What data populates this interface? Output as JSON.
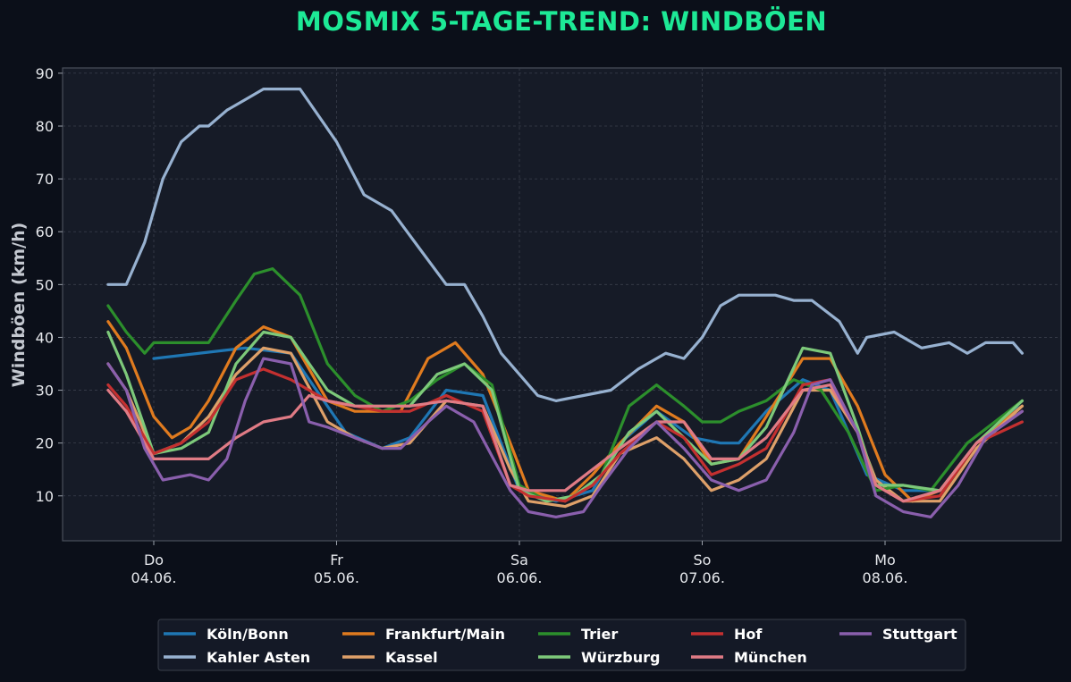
{
  "chart_data": {
    "type": "line",
    "title": "MOSMIX 5-TAGE-TREND: WINDBÖEN",
    "ylabel": "Windböen (km/h)",
    "xlabel": "",
    "xlim": [
      -0.25,
      5.0
    ],
    "ylim": [
      1.5,
      91
    ],
    "yticks": [
      10,
      20,
      30,
      40,
      50,
      60,
      70,
      80,
      90
    ],
    "xticks": [
      {
        "x": 0,
        "label": "Do\n04.06."
      },
      {
        "x": 1,
        "label": "Fr\n05.06."
      },
      {
        "x": 2,
        "label": "Sa\n06.06."
      },
      {
        "x": 3,
        "label": "So\n07.06."
      },
      {
        "x": 4,
        "label": "Mo\n08.06."
      }
    ],
    "grid": true,
    "legend_position": "bottom",
    "series": [
      {
        "name": "Köln/Bonn",
        "color": "#1f77b4",
        "points": [
          [
            0,
            36
          ],
          [
            0.5,
            38
          ],
          [
            0.75,
            37
          ],
          [
            1.05,
            22
          ],
          [
            1.25,
            19
          ],
          [
            1.4,
            21
          ],
          [
            1.6,
            30
          ],
          [
            1.8,
            29
          ],
          [
            1.9,
            20
          ],
          [
            2.0,
            11
          ],
          [
            2.2,
            9
          ],
          [
            2.4,
            11
          ],
          [
            2.55,
            20
          ],
          [
            2.75,
            26
          ],
          [
            2.95,
            21
          ],
          [
            3.1,
            20
          ],
          [
            3.2,
            20
          ],
          [
            3.35,
            26
          ],
          [
            3.55,
            32
          ],
          [
            3.7,
            30
          ],
          [
            3.9,
            14
          ],
          [
            4.1,
            11
          ],
          [
            4.3,
            11
          ],
          [
            4.5,
            20
          ],
          [
            4.7,
            26
          ],
          [
            4.75,
            27
          ]
        ]
      },
      {
        "name": "Kahler Asten",
        "color": "#97b1d0",
        "points": [
          [
            -0.25,
            50
          ],
          [
            -0.15,
            50
          ],
          [
            -0.05,
            58
          ],
          [
            0.05,
            70
          ],
          [
            0.15,
            77
          ],
          [
            0.25,
            80
          ],
          [
            0.3,
            80
          ],
          [
            0.4,
            83
          ],
          [
            0.5,
            85
          ],
          [
            0.6,
            87
          ],
          [
            0.8,
            87
          ],
          [
            1.0,
            77
          ],
          [
            1.15,
            67
          ],
          [
            1.3,
            64
          ],
          [
            1.45,
            57
          ],
          [
            1.6,
            50
          ],
          [
            1.7,
            50
          ],
          [
            1.8,
            44
          ],
          [
            1.9,
            37
          ],
          [
            2.0,
            33
          ],
          [
            2.1,
            29
          ],
          [
            2.2,
            28
          ],
          [
            2.35,
            29
          ],
          [
            2.5,
            30
          ],
          [
            2.65,
            34
          ],
          [
            2.8,
            37
          ],
          [
            2.9,
            36
          ],
          [
            3.0,
            40
          ],
          [
            3.1,
            46
          ],
          [
            3.2,
            48
          ],
          [
            3.4,
            48
          ],
          [
            3.5,
            47
          ],
          [
            3.6,
            47
          ],
          [
            3.75,
            43
          ],
          [
            3.85,
            37
          ],
          [
            3.9,
            40
          ],
          [
            4.05,
            41
          ],
          [
            4.2,
            38
          ],
          [
            4.35,
            39
          ],
          [
            4.45,
            37
          ],
          [
            4.55,
            39
          ],
          [
            4.7,
            39
          ],
          [
            4.75,
            37
          ]
        ]
      },
      {
        "name": "Frankfurt/Main",
        "color": "#e07b1f",
        "points": [
          [
            -0.25,
            43
          ],
          [
            -0.15,
            38
          ],
          [
            0.0,
            25
          ],
          [
            0.1,
            21
          ],
          [
            0.2,
            23
          ],
          [
            0.3,
            28
          ],
          [
            0.45,
            38
          ],
          [
            0.6,
            42
          ],
          [
            0.75,
            40
          ],
          [
            0.95,
            28
          ],
          [
            1.1,
            26
          ],
          [
            1.2,
            26
          ],
          [
            1.35,
            26
          ],
          [
            1.5,
            36
          ],
          [
            1.65,
            39
          ],
          [
            1.8,
            33
          ],
          [
            1.95,
            20
          ],
          [
            2.05,
            11
          ],
          [
            2.25,
            9
          ],
          [
            2.4,
            14
          ],
          [
            2.55,
            20
          ],
          [
            2.75,
            27
          ],
          [
            2.9,
            24
          ],
          [
            3.05,
            16
          ],
          [
            3.2,
            17
          ],
          [
            3.35,
            25
          ],
          [
            3.55,
            36
          ],
          [
            3.7,
            36
          ],
          [
            3.85,
            27
          ],
          [
            4.0,
            14
          ],
          [
            4.15,
            9
          ],
          [
            4.3,
            11
          ],
          [
            4.5,
            20
          ],
          [
            4.75,
            27
          ]
        ]
      },
      {
        "name": "Kassel",
        "color": "#dea069",
        "points": [
          [
            -0.25,
            35
          ],
          [
            -0.15,
            30
          ],
          [
            0.0,
            18
          ],
          [
            0.15,
            20
          ],
          [
            0.3,
            25
          ],
          [
            0.45,
            33
          ],
          [
            0.6,
            38
          ],
          [
            0.75,
            37
          ],
          [
            0.95,
            24
          ],
          [
            1.1,
            21
          ],
          [
            1.25,
            19
          ],
          [
            1.4,
            20
          ],
          [
            1.6,
            28
          ],
          [
            1.8,
            27
          ],
          [
            1.95,
            15
          ],
          [
            2.05,
            9
          ],
          [
            2.25,
            8
          ],
          [
            2.4,
            10
          ],
          [
            2.55,
            18
          ],
          [
            2.75,
            21
          ],
          [
            2.9,
            17
          ],
          [
            3.05,
            11
          ],
          [
            3.2,
            13
          ],
          [
            3.35,
            17
          ],
          [
            3.55,
            30
          ],
          [
            3.7,
            30
          ],
          [
            3.85,
            22
          ],
          [
            3.95,
            13
          ],
          [
            4.1,
            9
          ],
          [
            4.3,
            9
          ],
          [
            4.5,
            19
          ],
          [
            4.75,
            27
          ]
        ]
      },
      {
        "name": "Trier",
        "color": "#2c8f2c",
        "points": [
          [
            -0.25,
            46
          ],
          [
            -0.15,
            41
          ],
          [
            -0.05,
            37
          ],
          [
            0.0,
            39
          ],
          [
            0.15,
            39
          ],
          [
            0.3,
            39
          ],
          [
            0.45,
            47
          ],
          [
            0.55,
            52
          ],
          [
            0.65,
            53
          ],
          [
            0.8,
            48
          ],
          [
            0.95,
            35
          ],
          [
            1.1,
            29
          ],
          [
            1.25,
            26
          ],
          [
            1.4,
            28
          ],
          [
            1.55,
            32
          ],
          [
            1.7,
            35
          ],
          [
            1.85,
            31
          ],
          [
            2.0,
            12
          ],
          [
            2.15,
            9
          ],
          [
            2.3,
            10
          ],
          [
            2.45,
            14
          ],
          [
            2.6,
            27
          ],
          [
            2.75,
            31
          ],
          [
            2.9,
            27
          ],
          [
            3.0,
            24
          ],
          [
            3.1,
            24
          ],
          [
            3.2,
            26
          ],
          [
            3.35,
            28
          ],
          [
            3.5,
            32
          ],
          [
            3.65,
            30
          ],
          [
            3.8,
            22
          ],
          [
            3.95,
            11
          ],
          [
            4.1,
            12
          ],
          [
            4.25,
            11
          ],
          [
            4.45,
            20
          ],
          [
            4.75,
            28
          ]
        ]
      },
      {
        "name": "Würzburg",
        "color": "#7dc97a",
        "points": [
          [
            -0.25,
            41
          ],
          [
            -0.15,
            33
          ],
          [
            0.0,
            18
          ],
          [
            0.15,
            19
          ],
          [
            0.3,
            22
          ],
          [
            0.45,
            35
          ],
          [
            0.6,
            41
          ],
          [
            0.75,
            40
          ],
          [
            0.95,
            30
          ],
          [
            1.1,
            27
          ],
          [
            1.25,
            27
          ],
          [
            1.4,
            27
          ],
          [
            1.55,
            33
          ],
          [
            1.7,
            35
          ],
          [
            1.85,
            30
          ],
          [
            2.0,
            11
          ],
          [
            2.15,
            9
          ],
          [
            2.3,
            10
          ],
          [
            2.45,
            14
          ],
          [
            2.6,
            22
          ],
          [
            2.75,
            26
          ],
          [
            2.9,
            21
          ],
          [
            3.05,
            16
          ],
          [
            3.2,
            17
          ],
          [
            3.35,
            23
          ],
          [
            3.55,
            38
          ],
          [
            3.7,
            37
          ],
          [
            3.85,
            23
          ],
          [
            3.95,
            12
          ],
          [
            4.1,
            12
          ],
          [
            4.3,
            11
          ],
          [
            4.5,
            20
          ],
          [
            4.75,
            28
          ]
        ]
      },
      {
        "name": "Hof",
        "color": "#c43030",
        "points": [
          [
            -0.25,
            31
          ],
          [
            -0.15,
            27
          ],
          [
            0.0,
            18
          ],
          [
            0.15,
            20
          ],
          [
            0.3,
            24
          ],
          [
            0.45,
            32
          ],
          [
            0.6,
            34
          ],
          [
            0.75,
            32
          ],
          [
            0.95,
            28
          ],
          [
            1.1,
            27
          ],
          [
            1.25,
            26
          ],
          [
            1.4,
            26
          ],
          [
            1.6,
            29
          ],
          [
            1.8,
            26
          ],
          [
            1.95,
            12
          ],
          [
            2.05,
            10
          ],
          [
            2.25,
            9
          ],
          [
            2.4,
            12
          ],
          [
            2.55,
            18
          ],
          [
            2.75,
            24
          ],
          [
            2.9,
            21
          ],
          [
            3.05,
            14
          ],
          [
            3.2,
            16
          ],
          [
            3.35,
            19
          ],
          [
            3.55,
            31
          ],
          [
            3.7,
            32
          ],
          [
            3.85,
            22
          ],
          [
            3.95,
            12
          ],
          [
            4.1,
            9
          ],
          [
            4.3,
            10
          ],
          [
            4.5,
            20
          ],
          [
            4.75,
            24
          ]
        ]
      },
      {
        "name": "München",
        "color": "#e07b85",
        "points": [
          [
            -0.25,
            30
          ],
          [
            -0.15,
            26
          ],
          [
            0.0,
            17
          ],
          [
            0.15,
            17
          ],
          [
            0.3,
            17
          ],
          [
            0.45,
            21
          ],
          [
            0.6,
            24
          ],
          [
            0.75,
            25
          ],
          [
            0.85,
            29
          ],
          [
            0.95,
            28
          ],
          [
            1.1,
            27
          ],
          [
            1.25,
            27
          ],
          [
            1.4,
            27
          ],
          [
            1.6,
            28
          ],
          [
            1.8,
            27
          ],
          [
            1.95,
            12
          ],
          [
            2.05,
            11
          ],
          [
            2.25,
            11
          ],
          [
            2.4,
            15
          ],
          [
            2.55,
            19
          ],
          [
            2.75,
            24
          ],
          [
            2.9,
            24
          ],
          [
            3.05,
            17
          ],
          [
            3.2,
            17
          ],
          [
            3.35,
            21
          ],
          [
            3.55,
            30
          ],
          [
            3.7,
            31
          ],
          [
            3.85,
            22
          ],
          [
            3.95,
            12
          ],
          [
            4.1,
            9
          ],
          [
            4.3,
            11
          ],
          [
            4.5,
            20
          ],
          [
            4.75,
            26
          ]
        ]
      },
      {
        "name": "Stuttgart",
        "color": "#8a5fad",
        "points": [
          [
            -0.25,
            35
          ],
          [
            -0.15,
            30
          ],
          [
            -0.05,
            19
          ],
          [
            0.05,
            13
          ],
          [
            0.2,
            14
          ],
          [
            0.3,
            13
          ],
          [
            0.4,
            17
          ],
          [
            0.5,
            28
          ],
          [
            0.6,
            36
          ],
          [
            0.75,
            35
          ],
          [
            0.85,
            24
          ],
          [
            0.95,
            23
          ],
          [
            1.1,
            21
          ],
          [
            1.25,
            19
          ],
          [
            1.35,
            19
          ],
          [
            1.5,
            24
          ],
          [
            1.6,
            27
          ],
          [
            1.75,
            24
          ],
          [
            1.95,
            11
          ],
          [
            2.05,
            7
          ],
          [
            2.2,
            6
          ],
          [
            2.35,
            7
          ],
          [
            2.45,
            12
          ],
          [
            2.6,
            19
          ],
          [
            2.75,
            24
          ],
          [
            2.9,
            19
          ],
          [
            3.05,
            13
          ],
          [
            3.2,
            11
          ],
          [
            3.35,
            13
          ],
          [
            3.5,
            22
          ],
          [
            3.6,
            31
          ],
          [
            3.7,
            32
          ],
          [
            3.85,
            22
          ],
          [
            3.95,
            10
          ],
          [
            4.1,
            7
          ],
          [
            4.25,
            6
          ],
          [
            4.4,
            12
          ],
          [
            4.55,
            21
          ],
          [
            4.75,
            26
          ]
        ]
      }
    ],
    "legend_order": [
      "Köln/Bonn",
      "Kahler Asten",
      "Frankfurt/Main",
      "Kassel",
      "Trier",
      "Würzburg",
      "Hof",
      "München",
      "Stuttgart"
    ]
  }
}
